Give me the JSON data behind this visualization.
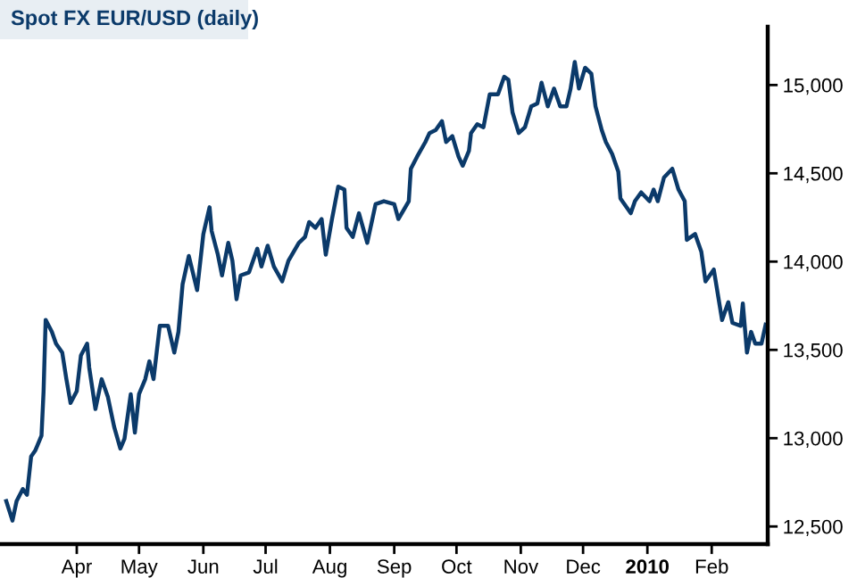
{
  "chart_data": {
    "type": "line",
    "title": "Spot FX EUR/USD (daily)",
    "x": [
      "2009-02-26",
      "2009-03-01",
      "2009-03-03",
      "2009-03-06",
      "2009-03-08",
      "2009-03-10",
      "2009-03-12",
      "2009-03-15",
      "2009-03-16",
      "2009-03-17",
      "2009-03-20",
      "2009-03-22",
      "2009-03-25",
      "2009-03-27",
      "2009-03-29",
      "2009-04-01",
      "2009-04-03",
      "2009-04-06",
      "2009-04-07",
      "2009-04-10",
      "2009-04-13",
      "2009-04-16",
      "2009-04-19",
      "2009-04-22",
      "2009-04-24",
      "2009-04-27",
      "2009-04-29",
      "2009-05-01",
      "2009-05-04",
      "2009-05-06",
      "2009-05-08",
      "2009-05-11",
      "2009-05-15",
      "2009-05-18",
      "2009-05-20",
      "2009-05-22",
      "2009-05-25",
      "2009-05-29",
      "2009-06-01",
      "2009-06-04",
      "2009-06-05",
      "2009-06-08",
      "2009-06-10",
      "2009-06-13",
      "2009-06-15",
      "2009-06-17",
      "2009-06-19",
      "2009-06-23",
      "2009-06-27",
      "2009-06-29",
      "2009-07-02",
      "2009-07-05",
      "2009-07-09",
      "2009-07-12",
      "2009-07-17",
      "2009-07-20",
      "2009-07-22",
      "2009-07-25",
      "2009-07-28",
      "2009-07-30",
      "2009-08-02",
      "2009-08-05",
      "2009-08-08",
      "2009-08-09",
      "2009-08-12",
      "2009-08-15",
      "2009-08-19",
      "2009-08-23",
      "2009-08-27",
      "2009-09-01",
      "2009-09-03",
      "2009-09-08",
      "2009-09-09",
      "2009-09-12",
      "2009-09-16",
      "2009-09-18",
      "2009-09-21",
      "2009-09-24",
      "2009-09-26",
      "2009-09-29",
      "2009-10-02",
      "2009-10-04",
      "2009-10-07",
      "2009-10-08",
      "2009-10-11",
      "2009-10-14",
      "2009-10-17",
      "2009-10-21",
      "2009-10-24",
      "2009-10-26",
      "2009-10-28",
      "2009-10-31",
      "2009-11-03",
      "2009-11-06",
      "2009-11-09",
      "2009-11-11",
      "2009-11-14",
      "2009-11-17",
      "2009-11-20",
      "2009-11-23",
      "2009-11-25",
      "2009-11-27",
      "2009-11-29",
      "2009-12-02",
      "2009-12-05",
      "2009-12-07",
      "2009-12-10",
      "2009-12-12",
      "2009-12-15",
      "2009-12-18",
      "2009-12-19",
      "2009-12-24",
      "2009-12-26",
      "2009-12-29",
      "2010-01-02",
      "2010-01-04",
      "2010-01-06",
      "2010-01-09",
      "2010-01-13",
      "2010-01-16",
      "2010-01-19",
      "2010-01-20",
      "2010-01-24",
      "2010-01-27",
      "2010-01-29",
      "2010-02-02",
      "2010-02-06",
      "2010-02-09",
      "2010-02-11",
      "2010-02-15",
      "2010-02-16",
      "2010-02-18",
      "2010-02-20",
      "2010-02-22",
      "2010-02-25",
      "2010-02-27"
    ],
    "series": [
      {
        "color": "#0b3a6a",
        "values": [
          12644,
          12533,
          12644,
          12712,
          12679,
          12896,
          12930,
          13014,
          13266,
          13670,
          13602,
          13535,
          13485,
          13334,
          13199,
          13266,
          13468,
          13535,
          13400,
          13165,
          13334,
          13233,
          13065,
          12941,
          12997,
          13249,
          13031,
          13249,
          13334,
          13435,
          13334,
          13636,
          13636,
          13485,
          13602,
          13871,
          14032,
          13838,
          14156,
          14308,
          14173,
          14039,
          13922,
          14106,
          14005,
          13787,
          13922,
          13939,
          14073,
          13972,
          14090,
          13972,
          13888,
          14005,
          14106,
          14140,
          14224,
          14191,
          14241,
          14039,
          14241,
          14425,
          14408,
          14191,
          14140,
          14274,
          14106,
          14325,
          14342,
          14325,
          14241,
          14342,
          14526,
          14594,
          14677,
          14728,
          14745,
          14795,
          14677,
          14711,
          14594,
          14543,
          14627,
          14728,
          14778,
          14761,
          14947,
          14947,
          15047,
          15030,
          14846,
          14728,
          14761,
          14879,
          14896,
          15013,
          14879,
          14980,
          14879,
          14879,
          14980,
          15131,
          14980,
          15098,
          15064,
          14879,
          14745,
          14677,
          14610,
          14509,
          14358,
          14274,
          14342,
          14392,
          14342,
          14408,
          14342,
          14476,
          14526,
          14408,
          14342,
          14123,
          14156,
          14056,
          13888,
          13955,
          13669,
          13770,
          13653,
          13636,
          13763,
          13485,
          13602,
          13535,
          13535,
          13643
        ]
      }
    ],
    "xlim": [
      "2009-02-23",
      "2010-02-28"
    ],
    "xticks": [
      {
        "value": "2009-04-01",
        "label": "Apr"
      },
      {
        "value": "2009-05-01",
        "label": "May"
      },
      {
        "value": "2009-06-01",
        "label": "Jun"
      },
      {
        "value": "2009-07-01",
        "label": "Jul"
      },
      {
        "value": "2009-08-01",
        "label": "Aug"
      },
      {
        "value": "2009-09-01",
        "label": "Sep"
      },
      {
        "value": "2009-10-01",
        "label": "Oct"
      },
      {
        "value": "2009-11-01",
        "label": "Nov"
      },
      {
        "value": "2009-12-01",
        "label": "Dec"
      },
      {
        "value": "2010-01-01",
        "label": "2010"
      },
      {
        "value": "2010-02-01",
        "label": "Feb"
      }
    ],
    "ylim": [
      12400,
      15330
    ],
    "yticks": [
      {
        "value": 12500,
        "label": "12,500"
      },
      {
        "value": 13000,
        "label": "13,000"
      },
      {
        "value": 13500,
        "label": "13,500"
      },
      {
        "value": 14000,
        "label": "14,000"
      },
      {
        "value": 14500,
        "label": "14,500"
      },
      {
        "value": 15000,
        "label": "15,000"
      }
    ],
    "grid": false,
    "legend": false
  }
}
